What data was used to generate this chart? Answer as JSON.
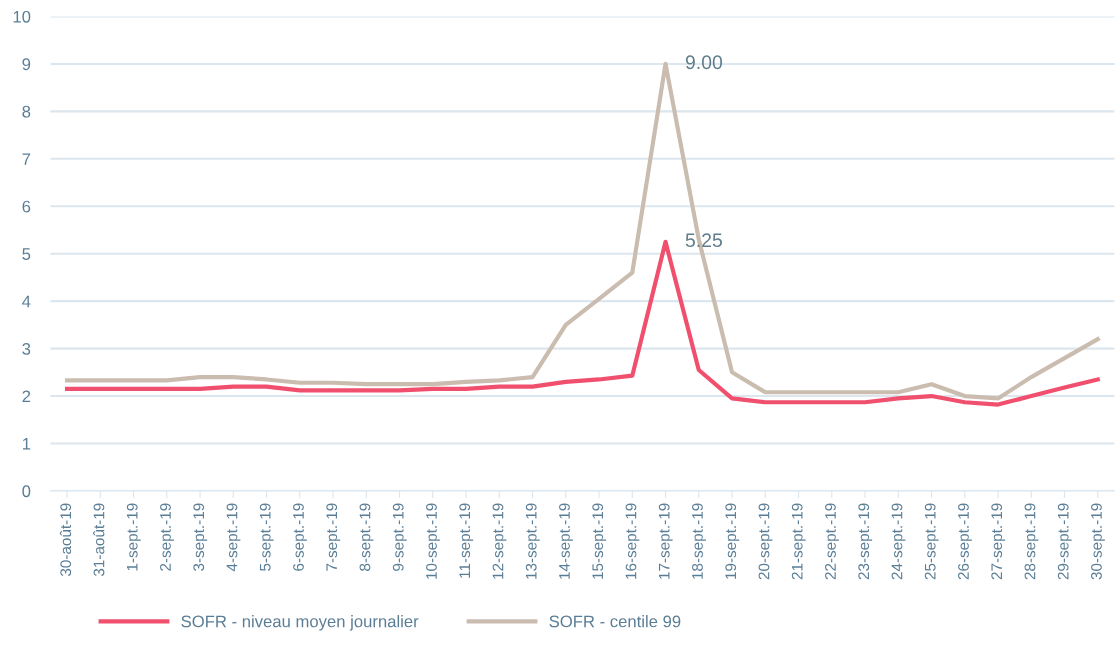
{
  "chart_data": {
    "type": "line",
    "categories": [
      "30-août-19",
      "31-août-19",
      "1-sept.-19",
      "2-sept.-19",
      "3-sept.-19",
      "4-sept.-19",
      "5-sept.-19",
      "6-sept.-19",
      "7-sept.-19",
      "8-sept.-19",
      "9-sept.-19",
      "10-sept.-19",
      "11-sept.-19",
      "12-sept.-19",
      "13-sept.-19",
      "14-sept.-19",
      "15-sept.-19",
      "16-sept.-19",
      "17-sept.-19",
      "18-sept.-19",
      "19-sept.-19",
      "20-sept.-19",
      "21-sept.-19",
      "22-sept.-19",
      "23-sept.-19",
      "24-sept.-19",
      "25-sept.-19",
      "26-sept.-19",
      "27-sept.-19",
      "28-sept.-19",
      "29-sept.-19",
      "30-sept.-19"
    ],
    "series": [
      {
        "name": "SOFR - niveau moyen journalier",
        "color": "#f0506e",
        "values": [
          2.15,
          2.15,
          2.15,
          2.15,
          2.15,
          2.2,
          2.2,
          2.12,
          2.12,
          2.12,
          2.12,
          2.15,
          2.15,
          2.2,
          2.2,
          2.3,
          2.35,
          2.43,
          5.25,
          2.55,
          1.95,
          1.87,
          1.87,
          1.87,
          1.87,
          1.95,
          2.0,
          1.87,
          1.82,
          2.0,
          2.18,
          2.35
        ],
        "value_labels": [
          null,
          null,
          null,
          null,
          null,
          null,
          null,
          null,
          null,
          null,
          null,
          null,
          null,
          null,
          null,
          null,
          null,
          null,
          "5.25",
          null,
          null,
          null,
          null,
          null,
          null,
          null,
          null,
          null,
          null,
          null,
          null,
          null
        ]
      },
      {
        "name": "SOFR - centile 99",
        "color": "#cbbcb0",
        "values": [
          2.33,
          2.33,
          2.33,
          2.33,
          2.4,
          2.4,
          2.35,
          2.28,
          2.28,
          2.25,
          2.25,
          2.25,
          2.3,
          2.33,
          2.4,
          3.5,
          4.05,
          4.6,
          9.0,
          5.3,
          2.5,
          2.08,
          2.08,
          2.08,
          2.08,
          2.08,
          2.25,
          2.0,
          1.95,
          2.4,
          2.8,
          3.2
        ],
        "value_labels": [
          null,
          null,
          null,
          null,
          null,
          null,
          null,
          null,
          null,
          null,
          null,
          null,
          null,
          null,
          null,
          null,
          null,
          null,
          "9.00",
          null,
          null,
          null,
          null,
          null,
          null,
          null,
          null,
          null,
          null,
          null,
          null,
          null
        ]
      }
    ],
    "ylim": [
      0,
      10
    ],
    "yticks": [
      0,
      1,
      2,
      3,
      4,
      5,
      6,
      7,
      8,
      9,
      10
    ],
    "grid": "y",
    "legend": "bottom",
    "marker": "none",
    "line_style": "solid"
  }
}
